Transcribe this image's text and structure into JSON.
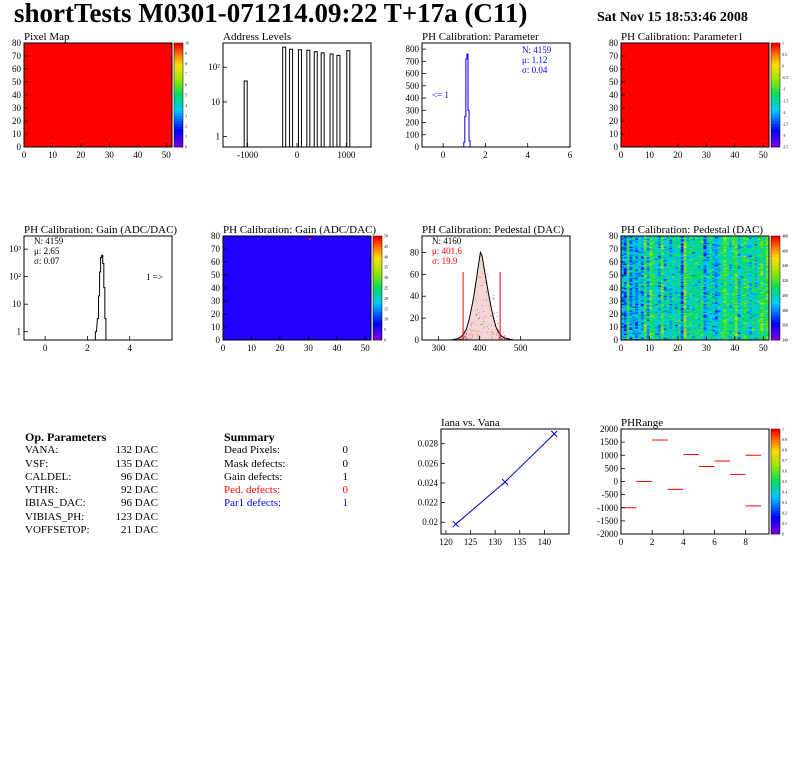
{
  "header": {
    "title": "shortTests M0301-071214.09:22 T+17a (C11)",
    "date": "Sat Nov 15 18:53:46 2008"
  },
  "charts": [
    {
      "id": "pixel-map",
      "title": "Pixel Map",
      "type": "heatmap",
      "fill": "#ff0000",
      "xlim": [
        0,
        52
      ],
      "ylim": [
        0,
        80
      ],
      "xticks": [
        "0",
        "10",
        "20",
        "30",
        "40",
        "50"
      ],
      "yticks": [
        "0",
        "10",
        "20",
        "30",
        "40",
        "50",
        "60",
        "70",
        "80"
      ],
      "zticks": [
        "0",
        "1",
        "2",
        "3",
        "4",
        "5",
        "6",
        "7",
        "8",
        "9",
        "10"
      ]
    },
    {
      "id": "address-levels",
      "title": "Address Levels",
      "type": "bar",
      "log": true,
      "xlim": [
        -1500,
        1500
      ],
      "xticks": [
        "-1000",
        "0",
        "1000"
      ],
      "yticks": [
        "1",
        "10",
        "10²"
      ],
      "peaks": [
        {
          "x": -1040,
          "y": 40
        },
        {
          "x": -260,
          "y": 380
        },
        {
          "x": -120,
          "y": 330
        },
        {
          "x": 60,
          "y": 320
        },
        {
          "x": 230,
          "y": 310
        },
        {
          "x": 380,
          "y": 280
        },
        {
          "x": 520,
          "y": 260
        },
        {
          "x": 700,
          "y": 240
        },
        {
          "x": 840,
          "y": 220
        },
        {
          "x": 1040,
          "y": 300
        }
      ]
    },
    {
      "id": "ph-parameter",
      "title": "PH Calibration: Parameter",
      "type": "bar",
      "xlim": [
        -1,
        6
      ],
      "ylim": [
        0,
        850
      ],
      "xticks": [
        "0",
        "2",
        "4",
        "6"
      ],
      "yticks": [
        "0",
        "100",
        "200",
        "300",
        "400",
        "500",
        "600",
        "700",
        "800"
      ],
      "hist": [
        {
          "x": 1.0,
          "y": 40
        },
        {
          "x": 1.05,
          "y": 250
        },
        {
          "x": 1.1,
          "y": 720
        },
        {
          "x": 1.15,
          "y": 760
        },
        {
          "x": 1.2,
          "y": 300
        },
        {
          "x": 1.25,
          "y": 50
        }
      ],
      "stats": [
        "N: 4159",
        "μ: 1.12",
        "σ: 0.04"
      ],
      "note": "<= 1"
    },
    {
      "id": "ph-parameter1",
      "title": "PH Calibration: Parameter1",
      "type": "heatmap",
      "fill": "#ff0000",
      "xlim": [
        0,
        52
      ],
      "ylim": [
        0,
        80
      ],
      "xticks": [
        "0",
        "10",
        "20",
        "30",
        "40",
        "50"
      ],
      "yticks": [
        "0",
        "10",
        "20",
        "30",
        "40",
        "50",
        "60",
        "70",
        "80"
      ],
      "zticks": [
        "-3.5",
        "-3",
        "-2.5",
        "-2",
        "-1.5",
        "-1",
        "-0.5",
        "0",
        "0.5",
        "1"
      ]
    },
    {
      "id": "ph-gain-hist",
      "title": "PH Calibration: Gain (ADC/DAC)",
      "type": "bar",
      "log": true,
      "xlim": [
        -1,
        6
      ],
      "xticks": [
        "0",
        "2",
        "4"
      ],
      "yticks": [
        "1",
        "10",
        "10²",
        "10³"
      ],
      "hist": [
        {
          "x": 2.4,
          "y": 1
        },
        {
          "x": 2.5,
          "y": 3
        },
        {
          "x": 2.55,
          "y": 20
        },
        {
          "x": 2.6,
          "y": 150
        },
        {
          "x": 2.65,
          "y": 500
        },
        {
          "x": 2.7,
          "y": 600
        },
        {
          "x": 2.75,
          "y": 300
        },
        {
          "x": 2.8,
          "y": 40
        },
        {
          "x": 2.85,
          "y": 3
        }
      ],
      "stats": [
        "N: 4159",
        "μ: 2.65",
        "σ: 0.07"
      ],
      "note": "1 =>"
    },
    {
      "id": "ph-gain-map",
      "title": "PH Calibration: Gain (ADC/DAC)",
      "type": "heatmap",
      "fill": "#2200ff",
      "xlim": [
        0,
        52
      ],
      "ylim": [
        0,
        80
      ],
      "xticks": [
        "0",
        "10",
        "20",
        "30",
        "40",
        "50"
      ],
      "yticks": [
        "0",
        "10",
        "20",
        "30",
        "40",
        "50",
        "60",
        "70",
        "80"
      ],
      "zticks": [
        "0",
        "5",
        "10",
        "15",
        "20",
        "25",
        "30",
        "35",
        "40",
        "45",
        "50"
      ]
    },
    {
      "id": "ph-pedestal-hist",
      "title": "PH Calibration: Pedestal (DAC)",
      "type": "bar",
      "xlim": [
        260,
        620
      ],
      "ylim": [
        0,
        95
      ],
      "xticks": [
        "300",
        "400",
        "500"
      ],
      "yticks": [
        "0",
        "20",
        "40",
        "60",
        "80"
      ],
      "hist_curve": [
        [
          330,
          0
        ],
        [
          345,
          1
        ],
        [
          355,
          3
        ],
        [
          362,
          6
        ],
        [
          368,
          10
        ],
        [
          374,
          18
        ],
        [
          380,
          28
        ],
        [
          386,
          40
        ],
        [
          392,
          55
        ],
        [
          398,
          70
        ],
        [
          402,
          80
        ],
        [
          406,
          77
        ],
        [
          410,
          68
        ],
        [
          416,
          55
        ],
        [
          422,
          42
        ],
        [
          428,
          30
        ],
        [
          434,
          20
        ],
        [
          440,
          12
        ],
        [
          446,
          7
        ],
        [
          452,
          4
        ],
        [
          460,
          2
        ],
        [
          470,
          1
        ],
        [
          480,
          0
        ]
      ],
      "cut_lines": [
        360,
        450
      ],
      "stats": [
        "N: 4160",
        "μ: 401.6",
        "σ: 19.9"
      ]
    },
    {
      "id": "ph-pedestal-map",
      "title": "PH Calibration: Pedestal (DAC)",
      "type": "heatmap",
      "xlim": [
        0,
        52
      ],
      "ylim": [
        0,
        80
      ],
      "xticks": [
        "0",
        "10",
        "20",
        "30",
        "40",
        "50"
      ],
      "yticks": [
        "0",
        "10",
        "20",
        "30",
        "40",
        "50",
        "60",
        "70",
        "80"
      ],
      "zticks": [
        "340",
        "360",
        "380",
        "400",
        "420",
        "440",
        "460",
        "480"
      ],
      "zlim": [
        340,
        490
      ],
      "mean": 405,
      "sigma": 20,
      "seed": 7
    },
    {
      "id": "iana-vana",
      "title": "Iana vs. Vana",
      "type": "line",
      "xlim": [
        119,
        145
      ],
      "ylim": [
        0.0188,
        0.0295
      ],
      "xticks": [
        "120",
        "125",
        "130",
        "135",
        "140"
      ],
      "yticks": [
        "0.02",
        "0.022",
        "0.024",
        "0.026",
        "0.028"
      ],
      "x": [
        122,
        132,
        142
      ],
      "y": [
        0.0198,
        0.0241,
        0.029
      ]
    },
    {
      "id": "phrange",
      "title": "PHRange",
      "type": "scatter",
      "xlim": [
        0,
        9.5
      ],
      "ylim": [
        -2000,
        2000
      ],
      "xticks": [
        "0",
        "2",
        "4",
        "6",
        "8"
      ],
      "yticks": [
        "-2000",
        "-1500",
        "-1000",
        "-500",
        "0",
        "500",
        "1000",
        "1500",
        "2000"
      ],
      "zticks": [
        "0",
        "0.1",
        "0.2",
        "0.3",
        "0.4",
        "0.5",
        "0.6",
        "0.7",
        "0.8",
        "0.9",
        "1"
      ],
      "segments": [
        {
          "x": 0,
          "y": -1000
        },
        {
          "x": 1,
          "y": 0
        },
        {
          "x": 2,
          "y": 1580
        },
        {
          "x": 3,
          "y": -300
        },
        {
          "x": 4,
          "y": 1030
        },
        {
          "x": 5,
          "y": 570
        },
        {
          "x": 6,
          "y": 780
        },
        {
          "x": 7,
          "y": 270
        },
        {
          "x": 8,
          "y": 1000
        },
        {
          "x": 8,
          "y": -930
        }
      ]
    }
  ],
  "op_params": {
    "heading": "Op. Parameters",
    "items": [
      {
        "k": "VANA:",
        "v": "132 DAC"
      },
      {
        "k": "VSF:",
        "v": "135 DAC"
      },
      {
        "k": "CALDEL:",
        "v": "96 DAC"
      },
      {
        "k": "VTHR:",
        "v": "92 DAC"
      },
      {
        "k": "IBIAS_DAC:",
        "v": "96 DAC"
      },
      {
        "k": "VIBIAS_PH:",
        "v": "123 DAC"
      },
      {
        "k": "VOFFSETOP:",
        "v": "21 DAC"
      }
    ]
  },
  "summary": {
    "heading": "Summary",
    "items": [
      {
        "k": "Dead Pixels:",
        "v": "0",
        "color": "#000000"
      },
      {
        "k": "Mask defects:",
        "v": "0",
        "color": "#000000"
      },
      {
        "k": "Gain defects:",
        "v": "1",
        "color": "#000000"
      },
      {
        "k": "Ped. defects:",
        "v": "0",
        "color": "#ff0000"
      },
      {
        "k": "Par1 defects:",
        "v": "1",
        "color": "#0000ff"
      }
    ]
  }
}
